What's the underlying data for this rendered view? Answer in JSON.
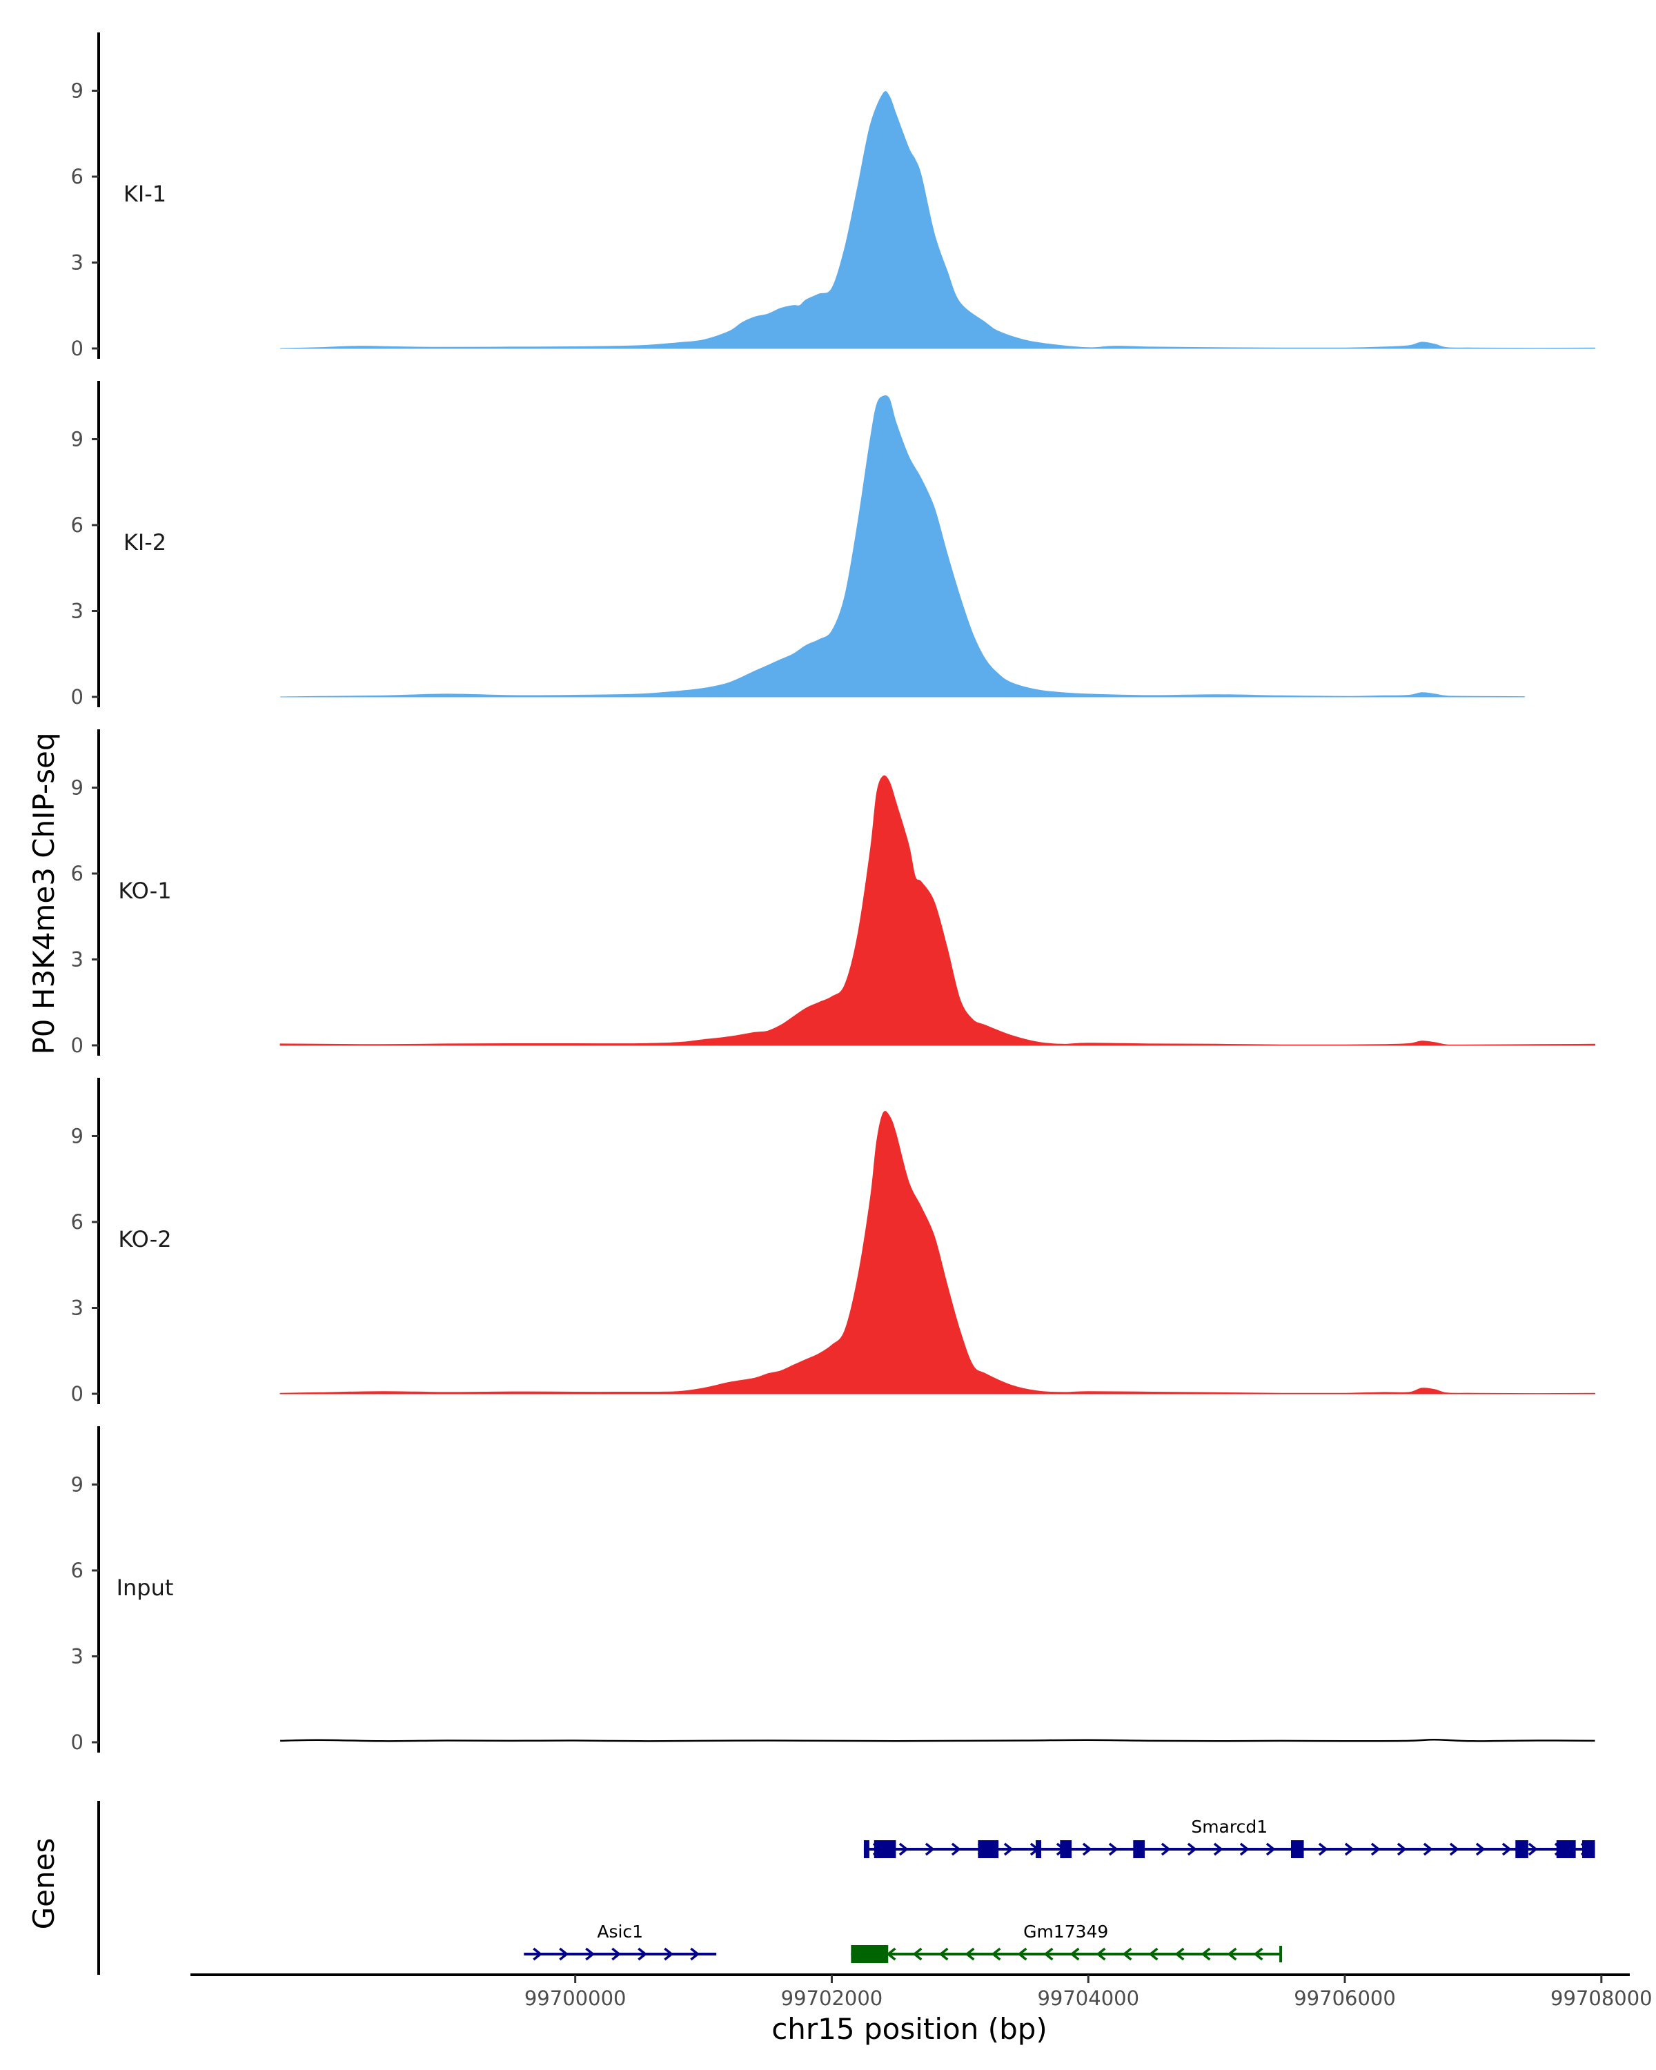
{
  "chart_data": {
    "type": "area",
    "title": "",
    "ylabel": "P0 H3K4me3 ChIP-seq",
    "xlabel": "chr15 position (bp)",
    "genes_label": "Genes",
    "xlim": [
      99697000,
      99708200
    ],
    "ylim": [
      0,
      11
    ],
    "x_ticks": [
      99700000,
      99702000,
      99704000,
      99706000,
      99708000
    ],
    "x_tick_labels": [
      "99700000",
      "99702000",
      "99704000",
      "99706000",
      "99708000"
    ],
    "y_ticks": [
      0,
      3,
      6,
      9
    ],
    "y_tick_labels": [
      "0",
      "3",
      "6",
      "9"
    ],
    "colors": {
      "KI": "#5DADEC",
      "KO": "#EE2C2C",
      "Input": "#000000",
      "axis": "#000000",
      "smarcd1": "#00008B",
      "gm17349": "#006400",
      "asic1": "#00008B"
    },
    "series": [
      {
        "name": "KI-1",
        "color": "#5DADEC",
        "x": [
          99697700,
          99698000,
          99698300,
          99698600,
          99699000,
          99699500,
          99700000,
          99700500,
          99700800,
          99701000,
          99701200,
          99701300,
          99701400,
          99701500,
          99701600,
          99701700,
          99701750,
          99701800,
          99701900,
          99702000,
          99702100,
          99702200,
          99702300,
          99702400,
          99702450,
          99702500,
          99702600,
          99702650,
          99702700,
          99702800,
          99702900,
          99703000,
          99703200,
          99703300,
          99703500,
          99703700,
          99704000,
          99704200,
          99704500,
          99705000,
          99705500,
          99706000,
          99706300,
          99706500,
          99706600,
          99706700,
          99706800,
          99707000,
          99707500,
          99707950
        ],
        "y": [
          0.0,
          0.03,
          0.08,
          0.06,
          0.04,
          0.05,
          0.06,
          0.1,
          0.2,
          0.3,
          0.6,
          0.9,
          1.1,
          1.2,
          1.4,
          1.5,
          1.5,
          1.7,
          1.9,
          2.1,
          3.5,
          5.6,
          7.8,
          8.9,
          8.8,
          8.2,
          7.0,
          6.6,
          6.0,
          4.0,
          2.7,
          1.6,
          0.9,
          0.6,
          0.3,
          0.15,
          0.03,
          0.08,
          0.05,
          0.03,
          0.02,
          0.02,
          0.05,
          0.1,
          0.22,
          0.15,
          0.03,
          0.02,
          0.01,
          0.02
        ]
      },
      {
        "name": "KI-2",
        "color": "#5DADEC",
        "x": [
          99697700,
          99698000,
          99698500,
          99699000,
          99699500,
          99700000,
          99700500,
          99700800,
          99701000,
          99701200,
          99701400,
          99701500,
          99701600,
          99701700,
          99701800,
          99701900,
          99702000,
          99702100,
          99702200,
          99702300,
          99702350,
          99702400,
          99702450,
          99702500,
          99702600,
          99702700,
          99702800,
          99702900,
          99703000,
          99703100,
          99703200,
          99703300,
          99703400,
          99703600,
          99703800,
          99704000,
          99704500,
          99705000,
          99705500,
          99706000,
          99706300,
          99706500,
          99706600,
          99706700,
          99706800,
          99707000,
          99707400
        ],
        "y": [
          0.0,
          0.02,
          0.04,
          0.1,
          0.05,
          0.06,
          0.1,
          0.2,
          0.3,
          0.5,
          0.9,
          1.1,
          1.3,
          1.5,
          1.8,
          2.0,
          2.3,
          3.5,
          6.0,
          9.0,
          10.2,
          10.5,
          10.4,
          9.6,
          8.4,
          7.6,
          6.6,
          5.0,
          3.5,
          2.2,
          1.3,
          0.8,
          0.5,
          0.25,
          0.15,
          0.1,
          0.05,
          0.08,
          0.04,
          0.02,
          0.04,
          0.06,
          0.15,
          0.1,
          0.03,
          0.02,
          0.01
        ]
      },
      {
        "name": "KO-1",
        "color": "#EE2C2C",
        "x": [
          99697700,
          99698000,
          99698500,
          99699000,
          99699500,
          99700000,
          99700500,
          99700800,
          99701000,
          99701200,
          99701400,
          99701500,
          99701600,
          99701700,
          99701800,
          99701900,
          99702000,
          99702100,
          99702200,
          99702300,
          99702350,
          99702400,
          99702450,
          99702500,
          99702600,
          99702650,
          99702700,
          99702800,
          99702900,
          99703000,
          99703100,
          99703200,
          99703400,
          99703600,
          99703800,
          99704000,
          99704500,
          99705000,
          99705500,
          99706000,
          99706300,
          99706500,
          99706600,
          99706700,
          99706800,
          99707000,
          99707500,
          99707950
        ],
        "y": [
          0.05,
          0.04,
          0.03,
          0.05,
          0.06,
          0.06,
          0.06,
          0.1,
          0.2,
          0.3,
          0.45,
          0.5,
          0.7,
          1.0,
          1.3,
          1.5,
          1.7,
          2.1,
          3.8,
          6.8,
          8.8,
          9.4,
          9.2,
          8.5,
          7.0,
          5.9,
          5.7,
          5.0,
          3.4,
          1.6,
          0.9,
          0.7,
          0.35,
          0.12,
          0.04,
          0.08,
          0.05,
          0.04,
          0.02,
          0.02,
          0.03,
          0.06,
          0.15,
          0.1,
          0.02,
          0.02,
          0.03,
          0.04
        ]
      },
      {
        "name": "KO-2",
        "color": "#EE2C2C",
        "x": [
          99697700,
          99698000,
          99698500,
          99699000,
          99699500,
          99700000,
          99700500,
          99700800,
          99701000,
          99701200,
          99701400,
          99701500,
          99701600,
          99701700,
          99701800,
          99701900,
          99702000,
          99702100,
          99702200,
          99702300,
          99702350,
          99702400,
          99702450,
          99702500,
          99702600,
          99702700,
          99702800,
          99702900,
          99703000,
          99703100,
          99703200,
          99703400,
          99703600,
          99703800,
          99704000,
          99704500,
          99705000,
          99705500,
          99706000,
          99706300,
          99706500,
          99706600,
          99706700,
          99706800,
          99707000,
          99707500,
          99707950
        ],
        "y": [
          0.02,
          0.04,
          0.08,
          0.05,
          0.07,
          0.06,
          0.06,
          0.08,
          0.2,
          0.4,
          0.55,
          0.7,
          0.8,
          1.0,
          1.2,
          1.4,
          1.7,
          2.2,
          4.0,
          6.8,
          8.8,
          9.8,
          9.7,
          9.1,
          7.4,
          6.5,
          5.5,
          3.8,
          2.2,
          1.0,
          0.7,
          0.3,
          0.1,
          0.05,
          0.08,
          0.06,
          0.04,
          0.02,
          0.02,
          0.05,
          0.05,
          0.2,
          0.15,
          0.03,
          0.02,
          0.01,
          0.02
        ]
      },
      {
        "name": "Input",
        "color": "#000000",
        "x": [
          99697700,
          99698000,
          99698500,
          99699000,
          99699500,
          99700000,
          99700500,
          99701000,
          99701500,
          99702000,
          99702500,
          99703000,
          99703500,
          99704000,
          99704500,
          99705000,
          99705500,
          99706000,
          99706500,
          99706700,
          99707000,
          99707500,
          99707950
        ],
        "y": [
          0.05,
          0.08,
          0.04,
          0.06,
          0.05,
          0.06,
          0.04,
          0.05,
          0.06,
          0.05,
          0.04,
          0.05,
          0.06,
          0.08,
          0.05,
          0.04,
          0.05,
          0.04,
          0.05,
          0.09,
          0.04,
          0.06,
          0.05
        ]
      }
    ],
    "genes": [
      {
        "name": "Smarcd1",
        "strand": "+",
        "color": "#00008B",
        "row": 0,
        "start": 99702250,
        "end": 99707950,
        "exons": [
          [
            99702250,
            99702270
          ],
          [
            99702330,
            99702500
          ],
          [
            99703140,
            99703300
          ],
          [
            99703590,
            99703630
          ],
          [
            99703780,
            99703870
          ],
          [
            99704350,
            99704440
          ],
          [
            99705580,
            99705680
          ],
          [
            99707330,
            99707430
          ],
          [
            99707650,
            99707800
          ],
          [
            99707850,
            99707950
          ]
        ]
      },
      {
        "name": "Gm17349",
        "strand": "-",
        "color": "#006400",
        "row": 1,
        "start": 99702150,
        "end": 99705500,
        "exons": [
          [
            99702150,
            99702440
          ]
        ]
      },
      {
        "name": "Asic1",
        "strand": "+",
        "color": "#00008B",
        "row": 1,
        "start": 99699600,
        "end": 99701100,
        "exons": []
      }
    ]
  }
}
